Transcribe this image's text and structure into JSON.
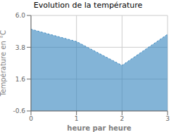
{
  "chart_data": {
    "type": "area",
    "title": "Evolution de la température",
    "xlabel": "heure par heure",
    "ylabel": "Température en °C",
    "x": [
      0,
      1,
      2,
      3
    ],
    "values": [
      5.05,
      4.2,
      2.55,
      4.7
    ],
    "xlim": [
      0,
      3
    ],
    "ylim": [
      -0.6,
      6.0
    ],
    "xticks": [
      0,
      1,
      2,
      3
    ],
    "yticks": [
      -0.6,
      1.6,
      3.8,
      {
        "value": 6.0,
        "label": "6.0"
      }
    ],
    "grid": true,
    "line_style": "dotted"
  }
}
